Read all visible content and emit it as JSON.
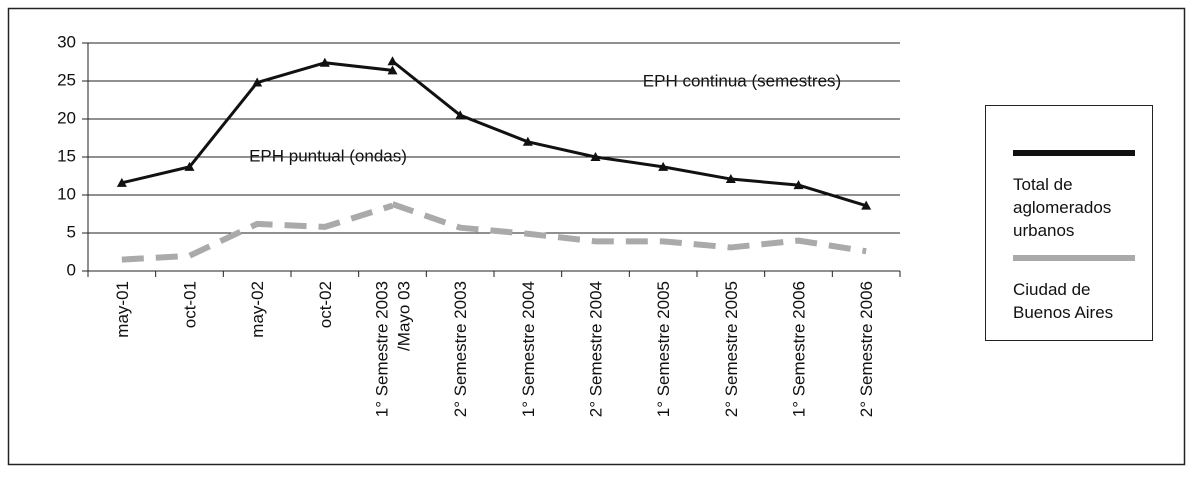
{
  "chart_data": {
    "type": "line",
    "categories": [
      "may-01",
      "oct-01",
      "may-02",
      "oct-02",
      "1° Semestre 2003\n/Mayo 03",
      "2° Semestre 2003",
      "1° Semestre 2004",
      "2° Semestre 2004",
      "1° Semestre 2005",
      "2° Semestre 2005",
      "1° Semestre 2006",
      "2° Semestre 2006"
    ],
    "series": [
      {
        "name": "Total de aglomerados urbanos",
        "color": "#111111",
        "dashed": false,
        "marker": "triangle",
        "puntual": [
          11.6,
          13.7,
          24.8,
          27.4,
          26.4,
          null,
          null,
          null,
          null,
          null,
          null,
          null
        ],
        "continua": [
          null,
          null,
          null,
          null,
          27.6,
          20.5,
          17.0,
          15.0,
          13.7,
          12.1,
          11.3,
          8.6
        ]
      },
      {
        "name": "Ciudad de Buenos Aires",
        "color": "#aaaaaa",
        "dashed": true,
        "marker": "none",
        "puntual": [
          1.5,
          2.0,
          6.2,
          5.8,
          8.6,
          null,
          null,
          null,
          null,
          null,
          null,
          null
        ],
        "continua": [
          null,
          null,
          null,
          null,
          8.8,
          5.7,
          4.9,
          3.9,
          3.9,
          3.1,
          4.0,
          2.6
        ]
      }
    ],
    "annotations": [
      "EPH continua (semestres)",
      "EPH puntual (ondas)"
    ],
    "ylim": [
      0,
      30
    ],
    "yticks": [
      0,
      5,
      10,
      15,
      20,
      25,
      30
    ],
    "grid": true,
    "legend": "right"
  }
}
